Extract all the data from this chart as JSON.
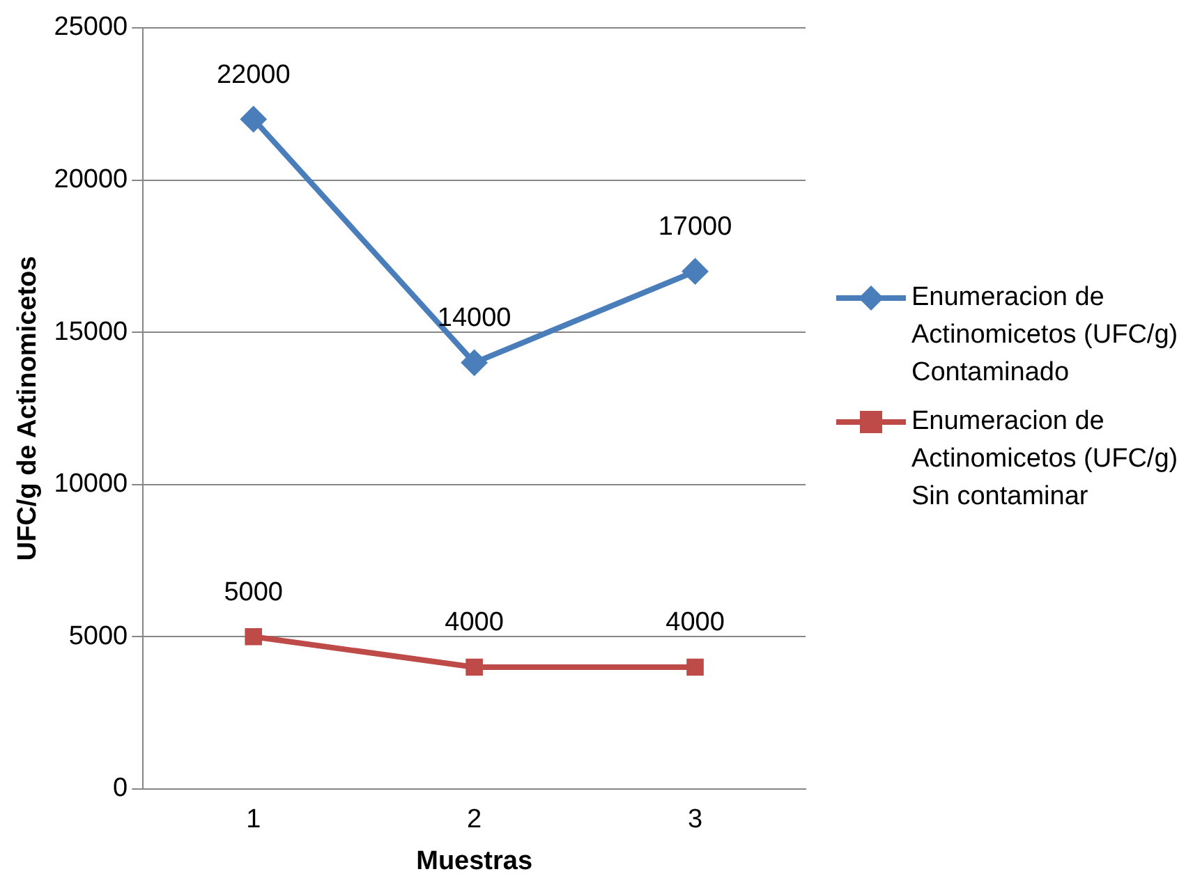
{
  "chart_data": {
    "type": "line",
    "xlabel": "Muestras",
    "ylabel": "UFC/g de Actinomicetos",
    "categories": [
      "1",
      "2",
      "3"
    ],
    "series": [
      {
        "name": "Enumeracion de Actinomicetos (UFC/g) Contaminado",
        "color": "#4a7ebb",
        "marker": "diamond",
        "values": [
          22000,
          14000,
          17000
        ]
      },
      {
        "name": "Enumeracion de Actinomicetos (UFC/g) Sin contaminar",
        "color": "#be4b48",
        "marker": "square",
        "values": [
          5000,
          4000,
          4000
        ]
      }
    ],
    "ylim": [
      0,
      25000
    ],
    "yticks": [
      0,
      5000,
      10000,
      15000,
      20000,
      25000
    ],
    "grid": "y",
    "legend": "right",
    "data_labels": true
  }
}
